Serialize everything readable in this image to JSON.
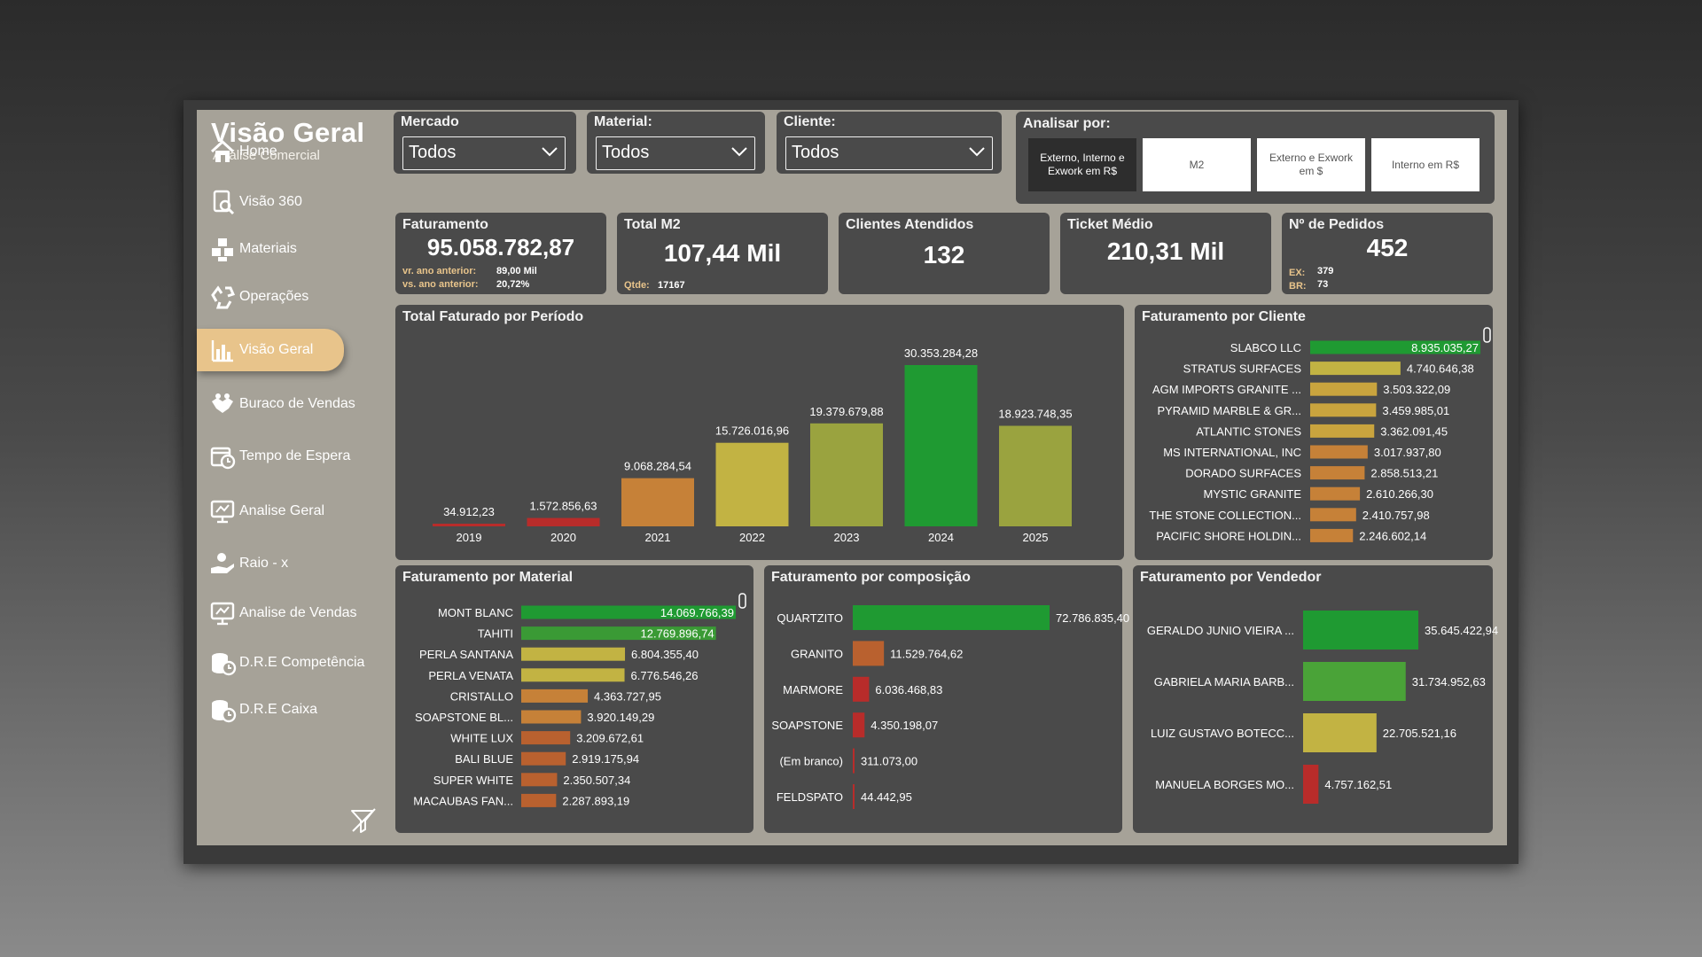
{
  "sidebar": {
    "title": "Visão Geral",
    "subtitle": "Análise Comercial",
    "items": [
      {
        "label": "Home",
        "icon": "home-icon"
      },
      {
        "label": "Visão 360",
        "icon": "document-search-icon"
      },
      {
        "label": "Materiais",
        "icon": "boxes-icon"
      },
      {
        "label": "Operações",
        "icon": "recycle-icon"
      },
      {
        "label": "Visão Geral",
        "icon": "bar-chart-icon"
      },
      {
        "label": "Buraco de Vendas",
        "icon": "handshake-icon"
      },
      {
        "label": "Tempo de Espera",
        "icon": "calendar-clock-icon"
      },
      {
        "label": "Analise Geral",
        "icon": "presentation-icon"
      },
      {
        "label": "Raio - x",
        "icon": "money-hand-icon"
      },
      {
        "label": "Analise de Vendas",
        "icon": "presentation-icon"
      },
      {
        "label": "D.R.E Competência",
        "icon": "coins-clock-icon"
      },
      {
        "label": "D.R.E Caixa",
        "icon": "coins-clock-icon"
      }
    ],
    "active_index": 4
  },
  "filters": {
    "mercado": {
      "label": "Mercado",
      "value": "Todos"
    },
    "material": {
      "label": "Material:",
      "value": "Todos"
    },
    "cliente": {
      "label": "Cliente:",
      "value": "Todos"
    }
  },
  "analisar": {
    "label": "Analisar por:",
    "options": [
      "Externo, Interno e Exwork em R$",
      "M2",
      "Externo e Exwork em $",
      "Interno em R$"
    ],
    "selected_index": 0
  },
  "kpis": {
    "faturamento": {
      "title": "Faturamento",
      "value": "95.058.782,87",
      "prev_label": "vr. ano anterior:",
      "prev_value": "89,00 Mil",
      "vs_label": "vs. ano anterior:",
      "vs_value": "20,72%"
    },
    "total_m2": {
      "title": "Total M2",
      "value": "107,44 Mil",
      "qtde_label": "Qtde:",
      "qtde_value": "17167"
    },
    "clientes": {
      "title": "Clientes Atendidos",
      "value": "132"
    },
    "ticket": {
      "title": "Ticket Médio",
      "value": "210,31 Mil"
    },
    "pedidos": {
      "title": "Nº de Pedidos",
      "value": "452",
      "ex_label": "EX:",
      "ex_value": "379",
      "br_label": "BR:",
      "br_value": "73"
    }
  },
  "colors": {
    "dark_green": "#1f9a32",
    "green": "#7da33b",
    "olive": "#9aa33f",
    "yellow": "#c2b343",
    "mustard": "#c9a43e",
    "orange": "#c68138",
    "burnt": "#b9612f",
    "red": "#b82c2a",
    "active_nav": "#e8c48b"
  },
  "chart_data": [
    {
      "type": "bar",
      "title": "Total Faturado por Período",
      "categories": [
        "2019",
        "2020",
        "2021",
        "2022",
        "2023",
        "2024",
        "2025"
      ],
      "values": [
        34912.23,
        1572856.63,
        9068284.54,
        15726016.96,
        19379679.88,
        30353284.28,
        18923748.35
      ],
      "labels": [
        "34.912,23",
        "1.572.856,63",
        "9.068.284,54",
        "15.726.016,96",
        "19.379.679,88",
        "30.353.284,28",
        "18.923.748,35"
      ],
      "colors": [
        "#b82c2a",
        "#b82c2a",
        "#c68138",
        "#c2b343",
        "#9aa33f",
        "#1f9a32",
        "#9aa33f"
      ]
    },
    {
      "type": "bar",
      "orientation": "horizontal",
      "title": "Faturamento por Cliente",
      "categories": [
        "SLABCO LLC",
        "STRATUS SURFACES",
        "AGM IMPORTS GRANITE ...",
        "PYRAMID MARBLE & GR...",
        "ATLANTIC STONES",
        "MS INTERNATIONAL, INC",
        "DORADO SURFACES",
        "MYSTIC GRANITE",
        "THE STONE COLLECTION...",
        "PACIFIC SHORE HOLDIN..."
      ],
      "values": [
        8935035.27,
        4740646.38,
        3503322.09,
        3459985.01,
        3362091.45,
        3017937.8,
        2858513.21,
        2610266.3,
        2410757.98,
        2246602.14
      ],
      "labels": [
        "8.935.035,27",
        "4.740.646,38",
        "3.503.322,09",
        "3.459.985,01",
        "3.362.091,45",
        "3.017.937,80",
        "2.858.513,21",
        "2.610.266,30",
        "2.410.757,98",
        "2.246.602,14"
      ],
      "colors": [
        "#1f9a32",
        "#c2b343",
        "#c9a43e",
        "#c9a43e",
        "#c9a43e",
        "#c68138",
        "#c68138",
        "#c68138",
        "#c68138",
        "#c68138"
      ]
    },
    {
      "type": "bar",
      "orientation": "horizontal",
      "title": "Faturamento por Material",
      "categories": [
        "MONT BLANC",
        "TAHITI",
        "PERLA SANTANA",
        "PERLA VENATA",
        "CRISTALLO",
        "SOAPSTONE BL...",
        "WHITE LUX",
        "BALI BLUE",
        "SUPER WHITE",
        "MACAUBAS FAN..."
      ],
      "values": [
        14069766.39,
        12769896.74,
        6804355.4,
        6776546.26,
        4363727.95,
        3920149.29,
        3209672.61,
        2919175.94,
        2350507.34,
        2287893.19
      ],
      "labels": [
        "14.069.766,39",
        "12.769.896,74",
        "6.804.355,40",
        "6.776.546,26",
        "4.363.727,95",
        "3.920.149,29",
        "3.209.672,61",
        "2.919.175,94",
        "2.350.507,34",
        "2.287.893,19"
      ],
      "colors": [
        "#1f9a32",
        "#3a9a35",
        "#c2b343",
        "#c2b343",
        "#c68138",
        "#c68138",
        "#b9612f",
        "#b9612f",
        "#b9612f",
        "#b9612f"
      ]
    },
    {
      "type": "bar",
      "orientation": "horizontal",
      "title": "Faturamento por composição",
      "categories": [
        "QUARTZITO",
        "GRANITO",
        "MARMORE",
        "SOAPSTONE",
        "(Em branco)",
        "FELDSPATO"
      ],
      "values": [
        72786835.4,
        11529764.62,
        6036468.83,
        4350198.07,
        311073.0,
        44442.95
      ],
      "labels": [
        "72.786.835,40",
        "11.529.764,62",
        "6.036.468,83",
        "4.350.198,07",
        "311.073,00",
        "44.442,95"
      ],
      "colors": [
        "#1f9a32",
        "#b9612f",
        "#b82c2a",
        "#b82c2a",
        "#b82c2a",
        "#b82c2a"
      ]
    },
    {
      "type": "bar",
      "orientation": "horizontal",
      "title": "Faturamento por Vendedor",
      "categories": [
        "GERALDO JUNIO VIEIRA ...",
        "GABRIELA MARIA BARB...",
        "LUIZ GUSTAVO BOTECC...",
        "MANUELA BORGES MO..."
      ],
      "values": [
        35645422.94,
        31734952.63,
        22705521.16,
        4757162.51
      ],
      "labels": [
        "35.645.422,94",
        "31.734.952,63",
        "22.705.521,16",
        "4.757.162,51"
      ],
      "colors": [
        "#1f9a32",
        "#4aa338",
        "#c2b343",
        "#b82c2a"
      ]
    }
  ]
}
